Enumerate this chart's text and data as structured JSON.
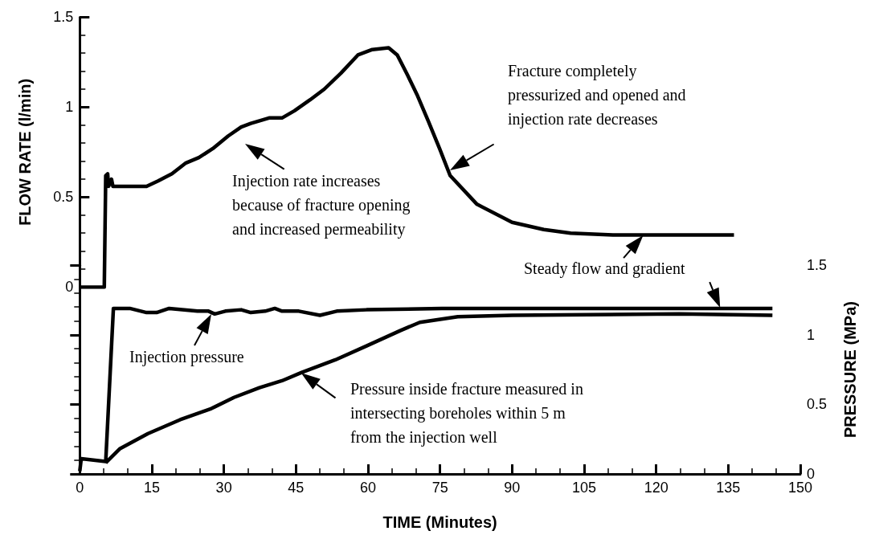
{
  "chart_data": [
    {
      "type": "line",
      "ylabel": "FLOW RATE (l/min)",
      "xlim": [
        0,
        150
      ],
      "ylim": [
        0,
        1.5
      ],
      "yticks": [
        0,
        0.5,
        1,
        1.5
      ],
      "tick_labels": "y",
      "marker": "none",
      "series": [
        {
          "color": "#000000",
          "x": [
            0,
            5.1,
            5.4,
            5.8,
            6.0,
            6.6,
            6.9,
            13.9,
            16.3,
            19.2,
            22.1,
            24.8,
            27.7,
            30.9,
            33.6,
            35.6,
            39.4,
            42.1,
            44.7,
            47.9,
            50.9,
            54.4,
            57.9,
            60.9,
            64.3,
            66.1,
            68.2,
            70.2,
            72.6,
            74.9,
            77.1,
            82.7,
            90.0,
            96.6,
            102.2,
            111.0,
            136.2
          ],
          "values": [
            0,
            0,
            0.62,
            0.63,
            0.56,
            0.6,
            0.56,
            0.56,
            0.59,
            0.63,
            0.69,
            0.72,
            0.77,
            0.84,
            0.89,
            0.91,
            0.94,
            0.94,
            0.98,
            1.04,
            1.1,
            1.19,
            1.29,
            1.32,
            1.33,
            1.29,
            1.18,
            1.07,
            0.92,
            0.77,
            0.62,
            0.46,
            0.36,
            0.32,
            0.3,
            0.29,
            0.29
          ]
        }
      ],
      "annotations": [
        "Injection rate increases\nbecause of fracture opening\nand increased permeability",
        "Fracture completely\npressurized and opened and\ninjection rate decreases",
        "Steady flow and gradient"
      ]
    },
    {
      "type": "line",
      "xlabel": "TIME (Minutes)",
      "y2label": "PRESSURE (MPa)",
      "xlim": [
        0,
        150
      ],
      "xticks": [
        0,
        15,
        30,
        45,
        60,
        75,
        90,
        105,
        120,
        135,
        150
      ],
      "y2lim": [
        0,
        1.5
      ],
      "y2ticks": [
        0,
        0.5,
        1,
        1.5
      ],
      "marker": "none",
      "series": [
        {
          "color": "#000000",
          "axis": "y2",
          "x": [
            0,
            0.3,
            5.4,
            7.0,
            10.4,
            13.9,
            16.0,
            18.6,
            24.5,
            26.8,
            28.1,
            30.3,
            33.6,
            35.6,
            38.6,
            40.6,
            42.1,
            45.6,
            50.0,
            53.5,
            59.7,
            75.4,
            144.2
          ],
          "values": [
            0.02,
            0.11,
            0.09,
            1.19,
            1.19,
            1.16,
            1.16,
            1.19,
            1.17,
            1.17,
            1.15,
            1.17,
            1.18,
            1.16,
            1.17,
            1.19,
            1.17,
            1.17,
            1.14,
            1.17,
            1.18,
            1.19,
            1.19
          ]
        },
        {
          "color": "#000000",
          "axis": "y2",
          "x": [
            5.4,
            8.3,
            14.2,
            20.9,
            27.4,
            32.1,
            37.4,
            42.1,
            46.2,
            53.2,
            59.7,
            66.7,
            70.8,
            78.7,
            90.0,
            124.8,
            144.2
          ],
          "values": [
            0.08,
            0.18,
            0.29,
            0.39,
            0.47,
            0.55,
            0.62,
            0.67,
            0.73,
            0.82,
            0.92,
            1.03,
            1.09,
            1.13,
            1.14,
            1.15,
            1.14
          ]
        }
      ],
      "annotations": [
        "Injection pressure",
        "Pressure inside fracture measured in\nintersecting boreholes within 5 m\nfrom the injection well"
      ]
    }
  ]
}
